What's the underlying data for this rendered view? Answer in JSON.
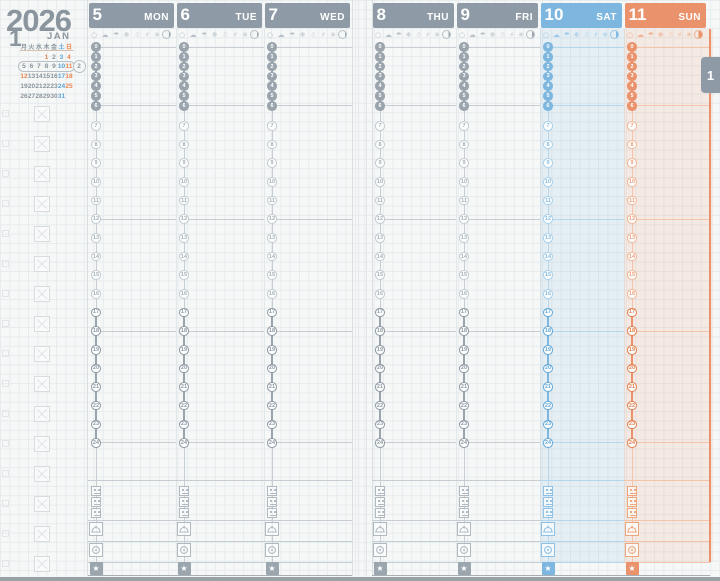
{
  "planner": {
    "year": "2026",
    "month_number": "1",
    "month_abbrev": "JAN",
    "week_number": "2",
    "side_tab_label": "1"
  },
  "colors": {
    "weekday_accent": "#8e9ba6",
    "saturday_accent": "#7db6de",
    "sunday_accent": "#e9926b",
    "saturday_text": "#5ea3d5",
    "holiday_text": "#e9854f",
    "ink": "#8b959d",
    "grid_line": "#e7ecee",
    "page_bg": "#f6f7f7",
    "bottom_band": "#9aa1a6"
  },
  "mini_calendar": {
    "weekday_headers": [
      {
        "label": "月",
        "type": "weekday"
      },
      {
        "label": "火",
        "type": "weekday"
      },
      {
        "label": "水",
        "type": "weekday"
      },
      {
        "label": "木",
        "type": "weekday"
      },
      {
        "label": "金",
        "type": "weekday"
      },
      {
        "label": "土",
        "type": "saturday"
      },
      {
        "label": "日",
        "type": "sunday"
      }
    ],
    "weeks": [
      [
        null,
        null,
        null,
        {
          "d": "1",
          "type": "holiday"
        },
        {
          "d": "2",
          "type": "weekday"
        },
        {
          "d": "3",
          "type": "saturday"
        },
        {
          "d": "4",
          "type": "sunday"
        }
      ],
      [
        {
          "d": "5",
          "type": "weekday"
        },
        {
          "d": "6",
          "type": "weekday"
        },
        {
          "d": "7",
          "type": "weekday"
        },
        {
          "d": "8",
          "type": "weekday"
        },
        {
          "d": "9",
          "type": "weekday"
        },
        {
          "d": "10",
          "type": "saturday"
        },
        {
          "d": "11",
          "type": "sunday"
        }
      ],
      [
        {
          "d": "12",
          "type": "holiday"
        },
        {
          "d": "13",
          "type": "weekday"
        },
        {
          "d": "14",
          "type": "weekday"
        },
        {
          "d": "15",
          "type": "weekday"
        },
        {
          "d": "16",
          "type": "weekday"
        },
        {
          "d": "17",
          "type": "saturday"
        },
        {
          "d": "18",
          "type": "sunday"
        }
      ],
      [
        {
          "d": "19",
          "type": "weekday"
        },
        {
          "d": "20",
          "type": "weekday"
        },
        {
          "d": "21",
          "type": "weekday"
        },
        {
          "d": "22",
          "type": "weekday"
        },
        {
          "d": "23",
          "type": "weekday"
        },
        {
          "d": "24",
          "type": "saturday"
        },
        {
          "d": "25",
          "type": "sunday"
        }
      ],
      [
        {
          "d": "26",
          "type": "weekday"
        },
        {
          "d": "27",
          "type": "weekday"
        },
        {
          "d": "28",
          "type": "weekday"
        },
        {
          "d": "29",
          "type": "weekday"
        },
        {
          "d": "30",
          "type": "weekday"
        },
        {
          "d": "31",
          "type": "saturday"
        },
        null
      ]
    ],
    "highlighted_week_row": 1
  },
  "week_days": [
    {
      "date": "5",
      "weekday": "MON",
      "theme": "gray",
      "moon_fill_percent": 12
    },
    {
      "date": "6",
      "weekday": "TUE",
      "theme": "gray",
      "moon_fill_percent": 12
    },
    {
      "date": "7",
      "weekday": "WED",
      "theme": "gray",
      "moon_fill_percent": 15
    },
    {
      "date": "8",
      "weekday": "THU",
      "theme": "gray",
      "moon_fill_percent": 25
    },
    {
      "date": "9",
      "weekday": "FRI",
      "theme": "gray",
      "moon_fill_percent": 25
    },
    {
      "date": "10",
      "weekday": "SAT",
      "theme": "blue",
      "moon_fill_percent": 30
    },
    {
      "date": "11",
      "weekday": "SUN",
      "theme": "orange",
      "moon_fill_percent": 50
    }
  ],
  "weather_icons": [
    {
      "name": "sun-icon",
      "glyph": "○"
    },
    {
      "name": "cloud-icon",
      "glyph": "☁"
    },
    {
      "name": "umbrella-icon",
      "glyph": "☂"
    },
    {
      "name": "snowflake-icon",
      "glyph": "❄"
    },
    {
      "name": "snowman-icon",
      "glyph": "☃"
    },
    {
      "name": "thunder-icon",
      "glyph": "⚡"
    },
    {
      "name": "wind-icon",
      "glyph": "✳"
    }
  ],
  "timeline": {
    "hour_labels": [
      0,
      1,
      2,
      3,
      4,
      5,
      6,
      7,
      8,
      9,
      10,
      11,
      12,
      13,
      14,
      15,
      16,
      17,
      18,
      19,
      20,
      21,
      22,
      23,
      24
    ],
    "compressed_night_hours": [
      0,
      6
    ],
    "evening_hours": [
      17,
      24
    ],
    "ruled_hours": [
      0,
      6,
      12,
      18,
      24
    ]
  },
  "trackers": {
    "meal_checkbox_count": 3,
    "icons": [
      "meal-checkbox-icon",
      "food-cover-icon",
      "activity-ring-icon",
      "star-icon"
    ],
    "star_glyph": "★"
  },
  "checklist": {
    "row_count": 16
  }
}
